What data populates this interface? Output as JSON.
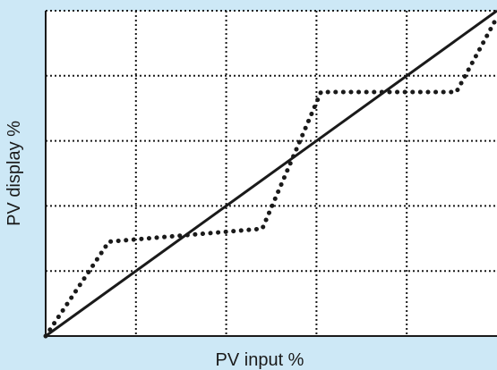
{
  "chart_data": {
    "type": "line",
    "title": "",
    "xlabel": "PV input %",
    "ylabel": "PV display %",
    "xlim": [
      0,
      100
    ],
    "ylim": [
      0,
      100
    ],
    "grid": true,
    "x_gridlines": [
      20,
      40,
      60,
      80
    ],
    "y_gridlines": [
      20,
      40,
      60,
      80
    ],
    "series": [
      {
        "style": "solid",
        "color": "#1a1a1a",
        "x": [
          0,
          100
        ],
        "y": [
          0,
          100
        ]
      },
      {
        "style": "dotted",
        "color": "#1a1a1a",
        "x": [
          0,
          14,
          48,
          61,
          91,
          100
        ],
        "y": [
          0,
          29,
          33,
          75,
          75,
          98
        ]
      }
    ]
  },
  "colors": {
    "background": "#cde8f6",
    "plot_area": "#ffffff",
    "ink": "#1a1a1a"
  }
}
